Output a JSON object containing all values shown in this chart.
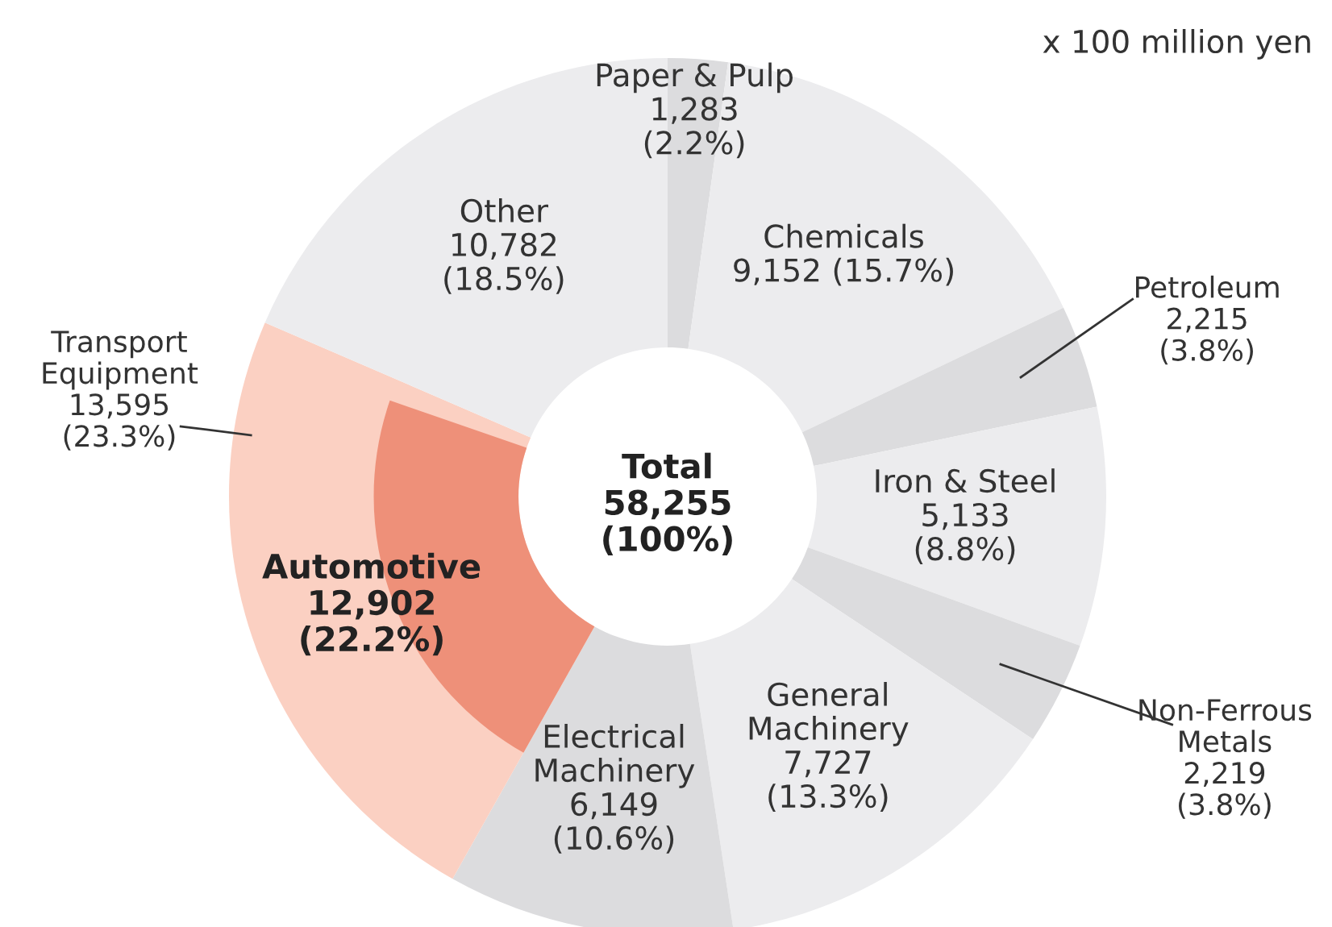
{
  "chart_data": {
    "type": "donut",
    "categories": [
      "Paper & Pulp",
      "Chemicals",
      "Petroleum",
      "Iron & Steel",
      "Non-Ferrous\nMetals",
      "General\nMachinery",
      "Electrical\nMachinery",
      "Transport\nEquipment",
      "Other"
    ],
    "series": [
      {
        "values": [
          1283,
          9152,
          2215,
          5133,
          2219,
          7727,
          6149,
          13595,
          10782
        ],
        "colors": [
          "#dcdcde",
          "#ececee",
          "#dcdcde",
          "#ececee",
          "#dcdcde",
          "#ececee",
          "#dcdcde",
          "#fbd0c2",
          "#ececee"
        ],
        "value_labels": [
          "1,283\n(2.2%)",
          "9,152 (15.7%)",
          "2,215\n(3.8%)",
          "5,133\n(8.8%)",
          "2,219\n(3.8%)",
          "7,727\n(13.3%)",
          "6,149\n(10.6%)",
          "13,595\n(23.3%)",
          "10,782\n(18.5%)"
        ]
      },
      {
        "name": "Automotive",
        "color": "#ee9079",
        "values": [
          null,
          null,
          null,
          null,
          null,
          null,
          null,
          12902,
          null
        ],
        "value_labels": [
          null,
          null,
          null,
          null,
          null,
          null,
          null,
          "12,902\n(22.2%)",
          null
        ]
      }
    ],
    "annotations": [
      "Total\n58,255\n(100%)",
      "x 100 million yen"
    ]
  }
}
